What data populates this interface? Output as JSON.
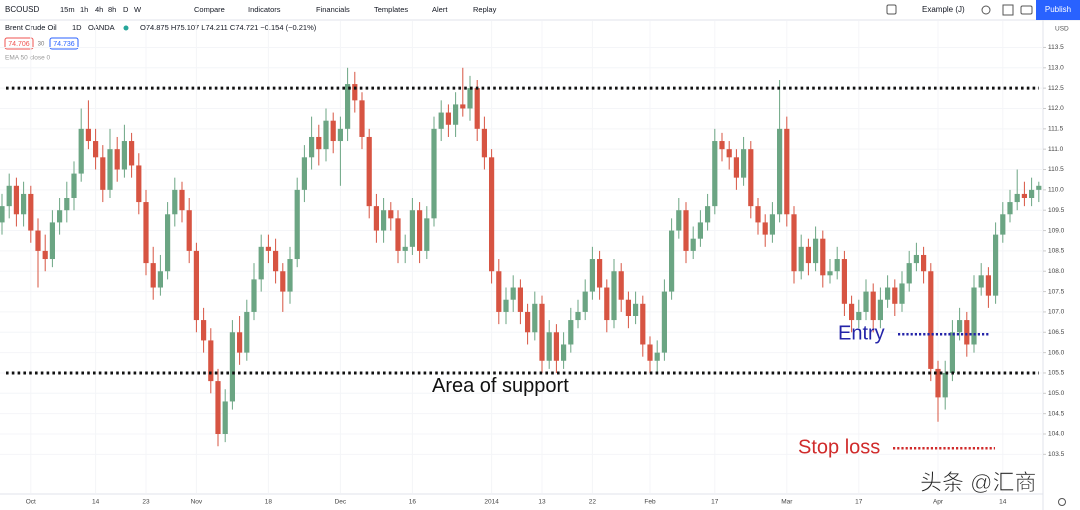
{
  "ui": {
    "symbol": "BCOUSD",
    "intervals": [
      "15m",
      "1h",
      "4h",
      "8h",
      "D",
      "W"
    ],
    "tools": [
      "Compare",
      "Indicators",
      "Financials",
      "Templates",
      "Alert",
      "Replay"
    ],
    "layout_name": "Example (J)",
    "publish": "Publish",
    "currency": "USD"
  },
  "chart_data": {
    "type": "candlestick",
    "symbol_name": "Brent Crude Oil",
    "interval": "1D",
    "exchange": "OANDA",
    "ohlc_text": "O74.875 H75.107 L74.211 C74.721 −0.154 (−0.21%)",
    "bid": "74.706",
    "spread": "30",
    "ask": "74.736",
    "indicator": "EMA 50 close 0",
    "up_color": "#6ba583",
    "down_color": "#d75442",
    "ylim": [
      102.55,
      114.15
    ],
    "yticks": [
      113.5,
      {
        "value": 113,
        "label": "113.0"
      },
      112.5,
      {
        "value": 112,
        "label": "112.0"
      },
      111.5,
      {
        "value": 111,
        "label": "111.0"
      },
      110.5,
      {
        "value": 110,
        "label": "110.0"
      },
      109.5,
      {
        "value": 109,
        "label": "109.0"
      },
      108.5,
      {
        "value": 108,
        "label": "108.0"
      },
      107.5,
      {
        "value": 107,
        "label": "107.0"
      },
      106.5,
      {
        "value": 106,
        "label": "106.0"
      },
      105.5,
      {
        "value": 105,
        "label": "105.0"
      },
      104.5,
      {
        "value": 104,
        "label": "104.0"
      },
      103.5
    ],
    "grid": true,
    "categories": [
      null,
      null,
      null,
      null,
      "Oct",
      null,
      null,
      null,
      null,
      null,
      null,
      null,
      null,
      "14",
      null,
      null,
      null,
      null,
      null,
      null,
      "23",
      null,
      null,
      null,
      null,
      null,
      null,
      "Nov",
      null,
      null,
      null,
      null,
      null,
      null,
      null,
      null,
      null,
      "18",
      null,
      null,
      null,
      null,
      null,
      null,
      null,
      null,
      null,
      "Dec",
      null,
      null,
      null,
      null,
      null,
      null,
      null,
      null,
      null,
      "16",
      null,
      null,
      null,
      null,
      null,
      null,
      null,
      null,
      null,
      null,
      "2014",
      null,
      null,
      null,
      null,
      null,
      null,
      "13",
      null,
      null,
      null,
      null,
      null,
      null,
      "22",
      null,
      null,
      null,
      null,
      null,
      null,
      null,
      "Feb",
      null,
      null,
      null,
      null,
      null,
      null,
      null,
      null,
      "17",
      null,
      null,
      null,
      null,
      null,
      null,
      null,
      null,
      null,
      "Mar",
      null,
      null,
      null,
      null,
      null,
      null,
      null,
      null,
      null,
      "17",
      null,
      null,
      null,
      null,
      null,
      null,
      null,
      null,
      null,
      null,
      "Apr",
      null,
      null,
      null,
      null,
      null,
      null,
      null,
      null,
      "14",
      null,
      null,
      null,
      null,
      null
    ],
    "ohlc": [
      [
        109.2,
        109.9,
        108.9,
        109.6
      ],
      [
        109.6,
        110.4,
        109.3,
        110.1
      ],
      [
        110.1,
        110.3,
        109.1,
        109.4
      ],
      [
        109.4,
        110.2,
        109.1,
        109.9
      ],
      [
        109.9,
        110.1,
        108.7,
        109.0
      ],
      [
        109.0,
        109.3,
        107.6,
        108.5
      ],
      [
        108.5,
        108.9,
        108.0,
        108.3
      ],
      [
        108.3,
        109.5,
        108.1,
        109.2
      ],
      [
        109.2,
        109.8,
        108.9,
        109.5
      ],
      [
        109.5,
        110.2,
        109.2,
        109.8
      ],
      [
        109.8,
        110.7,
        109.5,
        110.4
      ],
      [
        110.4,
        112.0,
        110.2,
        111.5
      ],
      [
        111.5,
        112.2,
        111.0,
        111.2
      ],
      [
        111.2,
        111.5,
        110.5,
        110.8
      ],
      [
        110.8,
        111.1,
        109.7,
        110.0
      ],
      [
        110.0,
        111.5,
        109.8,
        111.0
      ],
      [
        111.0,
        111.3,
        110.2,
        110.5
      ],
      [
        110.5,
        111.6,
        110.3,
        111.2
      ],
      [
        111.2,
        111.4,
        110.3,
        110.6
      ],
      [
        110.6,
        110.9,
        109.4,
        109.7
      ],
      [
        109.7,
        110.0,
        107.9,
        108.2
      ],
      [
        108.2,
        108.6,
        107.3,
        107.6
      ],
      [
        107.6,
        108.4,
        107.4,
        108.0
      ],
      [
        108.0,
        109.7,
        107.8,
        109.4
      ],
      [
        109.4,
        110.3,
        109.1,
        110.0
      ],
      [
        110.0,
        110.2,
        109.2,
        109.5
      ],
      [
        109.5,
        109.8,
        108.2,
        108.5
      ],
      [
        108.5,
        108.7,
        106.5,
        106.8
      ],
      [
        106.8,
        107.1,
        106.0,
        106.3
      ],
      [
        106.3,
        106.6,
        105.0,
        105.3
      ],
      [
        105.3,
        105.6,
        103.7,
        104.0
      ],
      [
        104.0,
        105.1,
        103.8,
        104.8
      ],
      [
        104.8,
        106.8,
        104.6,
        106.5
      ],
      [
        106.5,
        106.9,
        105.7,
        106.0
      ],
      [
        106.0,
        107.3,
        105.8,
        107.0
      ],
      [
        107.0,
        108.2,
        106.8,
        107.8
      ],
      [
        107.8,
        108.9,
        107.5,
        108.6
      ],
      [
        108.6,
        108.9,
        108.2,
        108.5
      ],
      [
        108.5,
        108.8,
        107.7,
        108.0
      ],
      [
        108.0,
        108.2,
        107.0,
        107.5
      ],
      [
        107.5,
        108.6,
        107.2,
        108.3
      ],
      [
        108.3,
        110.3,
        108.1,
        110.0
      ],
      [
        110.0,
        111.1,
        109.7,
        110.8
      ],
      [
        110.8,
        111.8,
        110.5,
        111.3
      ],
      [
        111.3,
        111.6,
        110.6,
        111.0
      ],
      [
        111.0,
        112.0,
        110.7,
        111.7
      ],
      [
        111.7,
        111.9,
        110.9,
        111.2
      ],
      [
        111.2,
        111.8,
        110.1,
        111.5
      ],
      [
        111.5,
        113.0,
        111.2,
        112.6
      ],
      [
        112.6,
        112.9,
        111.9,
        112.2
      ],
      [
        112.2,
        112.4,
        111.0,
        111.3
      ],
      [
        111.3,
        111.5,
        109.3,
        109.6
      ],
      [
        109.6,
        109.9,
        108.7,
        109.0
      ],
      [
        109.0,
        109.8,
        108.7,
        109.5
      ],
      [
        109.5,
        109.7,
        109.0,
        109.3
      ],
      [
        109.3,
        109.5,
        108.2,
        108.5
      ],
      [
        108.5,
        108.9,
        108.2,
        108.6
      ],
      [
        108.6,
        109.8,
        108.4,
        109.5
      ],
      [
        109.5,
        109.7,
        108.2,
        108.5
      ],
      [
        108.5,
        109.6,
        108.3,
        109.3
      ],
      [
        109.3,
        111.8,
        109.1,
        111.5
      ],
      [
        111.5,
        112.2,
        111.2,
        111.9
      ],
      [
        111.9,
        112.1,
        111.3,
        111.6
      ],
      [
        111.6,
        112.4,
        111.3,
        112.1
      ],
      [
        112.1,
        113.0,
        111.8,
        112.0
      ],
      [
        112.0,
        112.8,
        111.7,
        112.5
      ],
      [
        112.5,
        112.7,
        111.2,
        111.5
      ],
      [
        111.5,
        111.8,
        110.5,
        110.8
      ],
      [
        110.8,
        111.0,
        107.7,
        108.0
      ],
      [
        108.0,
        108.3,
        106.7,
        107.0
      ],
      [
        107.0,
        107.6,
        106.7,
        107.3
      ],
      [
        107.3,
        107.9,
        107.0,
        107.6
      ],
      [
        107.6,
        107.8,
        106.7,
        107.0
      ],
      [
        107.0,
        107.2,
        106.2,
        106.5
      ],
      [
        106.5,
        107.5,
        106.3,
        107.2
      ],
      [
        107.2,
        107.4,
        105.5,
        105.8
      ],
      [
        105.8,
        106.8,
        105.6,
        106.5
      ],
      [
        106.5,
        106.7,
        105.5,
        105.8
      ],
      [
        105.8,
        106.5,
        105.6,
        106.2
      ],
      [
        106.2,
        107.1,
        106.0,
        106.8
      ],
      [
        106.8,
        107.3,
        106.6,
        107.0
      ],
      [
        107.0,
        107.8,
        106.8,
        107.5
      ],
      [
        107.5,
        108.6,
        107.3,
        108.3
      ],
      [
        108.3,
        108.5,
        107.3,
        107.6
      ],
      [
        107.6,
        107.8,
        106.5,
        106.8
      ],
      [
        106.8,
        108.3,
        106.6,
        108.0
      ],
      [
        108.0,
        108.2,
        107.0,
        107.3
      ],
      [
        107.3,
        107.5,
        106.6,
        106.9
      ],
      [
        106.9,
        107.5,
        106.7,
        107.2
      ],
      [
        107.2,
        107.4,
        105.9,
        106.2
      ],
      [
        106.2,
        106.4,
        105.5,
        105.8
      ],
      [
        105.8,
        106.3,
        105.5,
        106.0
      ],
      [
        106.0,
        107.8,
        105.8,
        107.5
      ],
      [
        107.5,
        109.3,
        107.3,
        109.0
      ],
      [
        109.0,
        109.8,
        108.8,
        109.5
      ],
      [
        109.5,
        109.7,
        108.2,
        108.5
      ],
      [
        108.5,
        109.1,
        108.3,
        108.8
      ],
      [
        108.8,
        109.5,
        108.6,
        109.2
      ],
      [
        109.2,
        109.9,
        109.0,
        109.6
      ],
      [
        109.6,
        111.5,
        109.4,
        111.2
      ],
      [
        111.2,
        111.4,
        110.7,
        111.0
      ],
      [
        111.0,
        111.2,
        110.5,
        110.8
      ],
      [
        110.8,
        111.0,
        110.0,
        110.3
      ],
      [
        110.3,
        111.3,
        110.1,
        111.0
      ],
      [
        111.0,
        111.2,
        109.3,
        109.6
      ],
      [
        109.6,
        109.8,
        108.9,
        109.2
      ],
      [
        109.2,
        109.4,
        108.6,
        108.9
      ],
      [
        108.9,
        109.7,
        108.7,
        109.4
      ],
      [
        109.4,
        112.7,
        109.2,
        111.5
      ],
      [
        111.5,
        111.8,
        109.1,
        109.4
      ],
      [
        109.4,
        109.6,
        107.7,
        108.0
      ],
      [
        108.0,
        108.9,
        107.8,
        108.6
      ],
      [
        108.6,
        108.8,
        107.9,
        108.2
      ],
      [
        108.2,
        109.1,
        108.0,
        108.8
      ],
      [
        108.8,
        109.0,
        107.6,
        107.9
      ],
      [
        107.9,
        108.3,
        107.7,
        108.0
      ],
      [
        108.0,
        108.6,
        107.8,
        108.3
      ],
      [
        108.3,
        108.5,
        106.9,
        107.2
      ],
      [
        107.2,
        107.4,
        106.5,
        106.8
      ],
      [
        106.8,
        107.3,
        106.6,
        107.0
      ],
      [
        107.0,
        107.8,
        106.8,
        107.5
      ],
      [
        107.5,
        107.7,
        106.5,
        106.8
      ],
      [
        106.8,
        107.6,
        106.6,
        107.3
      ],
      [
        107.3,
        107.9,
        107.1,
        107.6
      ],
      [
        107.6,
        107.8,
        106.9,
        107.2
      ],
      [
        107.2,
        108.0,
        107.0,
        107.7
      ],
      [
        107.7,
        108.5,
        107.5,
        108.2
      ],
      [
        108.2,
        108.7,
        108.0,
        108.4
      ],
      [
        108.4,
        108.6,
        107.7,
        108.0
      ],
      [
        108.0,
        108.2,
        105.3,
        105.6
      ],
      [
        105.6,
        105.8,
        104.3,
        104.9
      ],
      [
        104.9,
        105.8,
        104.6,
        105.5
      ],
      [
        105.5,
        106.8,
        105.3,
        106.5
      ],
      [
        106.5,
        107.1,
        106.3,
        106.8
      ],
      [
        106.8,
        107.0,
        105.9,
        106.2
      ],
      [
        106.2,
        107.9,
        106.0,
        107.6
      ],
      [
        107.6,
        108.2,
        107.4,
        107.9
      ],
      [
        107.9,
        108.1,
        107.1,
        107.4
      ],
      [
        107.4,
        109.2,
        107.2,
        108.9
      ],
      [
        108.9,
        109.7,
        108.7,
        109.4
      ],
      [
        109.4,
        110.0,
        109.2,
        109.7
      ],
      [
        109.7,
        110.5,
        109.5,
        109.9
      ],
      [
        109.9,
        110.2,
        109.6,
        109.8
      ],
      [
        109.8,
        110.3,
        109.6,
        110.0
      ],
      [
        110.0,
        110.2,
        109.7,
        110.1
      ]
    ],
    "levels": [
      {
        "value": 112.5
      },
      {
        "value": 105.5,
        "text": "Area of support"
      }
    ],
    "annotations": [
      {
        "text": "Entry",
        "value": 106.45,
        "color": "#2323a8"
      },
      {
        "text": "Stop loss",
        "value": 103.65,
        "color": "#d02b2b"
      }
    ],
    "watermark": "头条 @汇商"
  }
}
